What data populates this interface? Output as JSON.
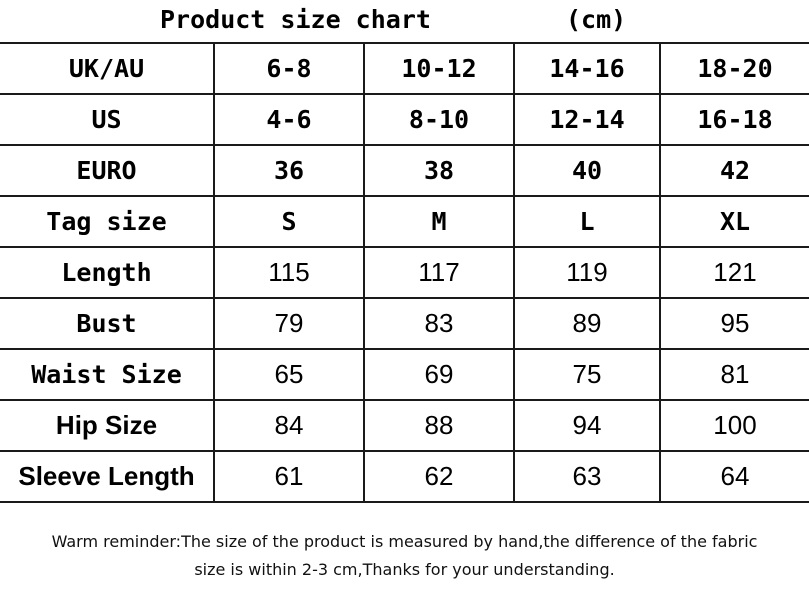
{
  "title": "Product size chart",
  "unit": "(cm)",
  "table": {
    "rows": [
      {
        "label": "UK/AU",
        "values": [
          "6-8",
          "10-12",
          "14-16",
          "18-20"
        ],
        "style": "mono"
      },
      {
        "label": "US",
        "values": [
          "4-6",
          "8-10",
          "12-14",
          "16-18"
        ],
        "style": "mono"
      },
      {
        "label": "EURO",
        "values": [
          "36",
          "38",
          "40",
          "42"
        ],
        "style": "mono"
      },
      {
        "label": "Tag size",
        "values": [
          "S",
          "M",
          "L",
          "XL"
        ],
        "style": "mono"
      },
      {
        "label": "Length",
        "values": [
          "115",
          "117",
          "119",
          "121"
        ],
        "style": "mono-label"
      },
      {
        "label": "Bust",
        "values": [
          "79",
          "83",
          "89",
          "95"
        ],
        "style": "mono-label"
      },
      {
        "label": "Waist Size",
        "values": [
          "65",
          "69",
          "75",
          "81"
        ],
        "style": "mono-label"
      },
      {
        "label": "Hip Size",
        "values": [
          "84",
          "88",
          "94",
          "100"
        ],
        "style": "sans"
      },
      {
        "label": "Sleeve Length",
        "values": [
          "61",
          "62",
          "63",
          "64"
        ],
        "style": "sans"
      }
    ]
  },
  "reminder": {
    "line1": "Warm reminder:The size of the product is measured by hand,the difference of the fabric",
    "line2": "size is within 2-3 cm,Thanks for your understanding."
  }
}
